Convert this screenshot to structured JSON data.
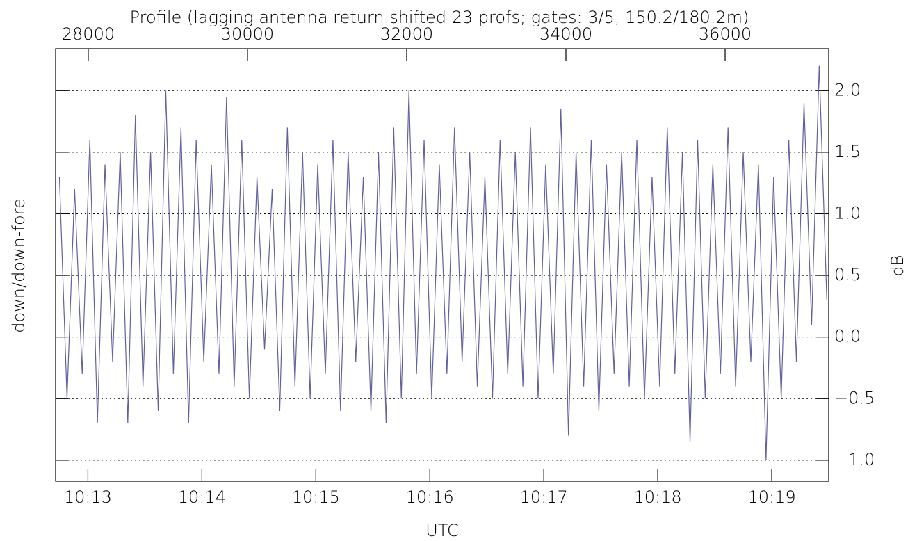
{
  "chart_data": {
    "type": "line",
    "title": "Profile (lagging antenna return shifted 23 profs; gates: 3/5, 150.2/180.2m)",
    "y_label": "down/down-fore",
    "y2_label": "dB",
    "x_label": "UTC",
    "xlim": [
      36763,
      37170
    ],
    "xticks": [
      {
        "value": 36780,
        "label": "10:13"
      },
      {
        "value": 36840,
        "label": "10:14"
      },
      {
        "value": 36900,
        "label": "10:15"
      },
      {
        "value": 36960,
        "label": "10:16"
      },
      {
        "value": 37020,
        "label": "10:17"
      },
      {
        "value": 37080,
        "label": "10:18"
      },
      {
        "value": 37140,
        "label": "10:19"
      }
    ],
    "x2lim": [
      27590,
      37301
    ],
    "x2ticks": [
      28000,
      30000,
      32000,
      34000,
      36000
    ],
    "ylim": [
      -1.17,
      2.34
    ],
    "yticks": [
      {
        "value": -1,
        "label": "−1.0"
      },
      {
        "value": -0.5,
        "label": "−0.5"
      },
      {
        "value": 0,
        "label": "0.0"
      },
      {
        "value": 0.5,
        "label": "0.5"
      },
      {
        "value": 1,
        "label": "1.0"
      },
      {
        "value": 1.5,
        "label": "1.5"
      },
      {
        "value": 2,
        "label": "2.0"
      }
    ],
    "grid": true,
    "series": [
      {
        "color": "#63619b",
        "x": [
          36765,
          36769,
          36773,
          36777,
          36781,
          36785,
          36789,
          36793,
          36797,
          36801,
          36805,
          36809,
          36813,
          36817,
          36821,
          36825,
          36829,
          36833,
          36837,
          36841,
          36845,
          36849,
          36853,
          36857,
          36861,
          36865,
          36869,
          36873,
          36877,
          36881,
          36885,
          36889,
          36893,
          36897,
          36901,
          36905,
          36909,
          36913,
          36917,
          36921,
          36925,
          36929,
          36933,
          36937,
          36941,
          36945,
          36949,
          36953,
          36957,
          36961,
          36965,
          36969,
          36973,
          36977,
          36981,
          36985,
          36989,
          36993,
          36997,
          37001,
          37005,
          37009,
          37013,
          37017,
          37021,
          37025,
          37029,
          37033,
          37037,
          37041,
          37045,
          37049,
          37053,
          37057,
          37061,
          37065,
          37069,
          37073,
          37077,
          37081,
          37085,
          37089,
          37093,
          37097,
          37101,
          37105,
          37109,
          37113,
          37117,
          37121,
          37125,
          37129,
          37133,
          37137,
          37141,
          37145,
          37149,
          37153,
          37157,
          37161,
          37165,
          37169
        ],
        "values": [
          1.3,
          -0.5,
          1.2,
          -0.3,
          1.6,
          -0.7,
          1.4,
          -0.2,
          1.5,
          -0.7,
          1.8,
          -0.4,
          1.5,
          -0.6,
          2.0,
          -0.3,
          1.7,
          -0.7,
          1.6,
          -0.2,
          1.4,
          -0.3,
          1.95,
          -0.4,
          1.6,
          -0.5,
          1.3,
          -0.1,
          1.2,
          -0.6,
          1.7,
          -0.4,
          1.5,
          -0.5,
          1.4,
          -0.3,
          1.6,
          -0.6,
          1.5,
          -0.2,
          1.3,
          -0.6,
          1.5,
          -0.7,
          1.7,
          -0.5,
          2.0,
          -0.3,
          1.6,
          -0.5,
          1.4,
          -0.3,
          1.7,
          -0.2,
          1.5,
          -0.4,
          1.3,
          -0.5,
          1.6,
          -0.3,
          1.5,
          -0.4,
          1.7,
          -0.5,
          1.4,
          -0.3,
          1.85,
          -0.8,
          1.5,
          -0.4,
          1.6,
          -0.6,
          1.4,
          -0.3,
          1.5,
          -0.4,
          1.6,
          -0.5,
          1.3,
          -0.4,
          1.7,
          -0.3,
          1.5,
          -0.85,
          1.6,
          -0.5,
          1.4,
          -0.3,
          1.7,
          -0.4,
          1.5,
          -0.2,
          1.4,
          -1.0,
          1.3,
          -0.5,
          1.6,
          -0.2,
          1.9,
          0.1,
          2.2,
          0.3
        ]
      }
    ]
  }
}
